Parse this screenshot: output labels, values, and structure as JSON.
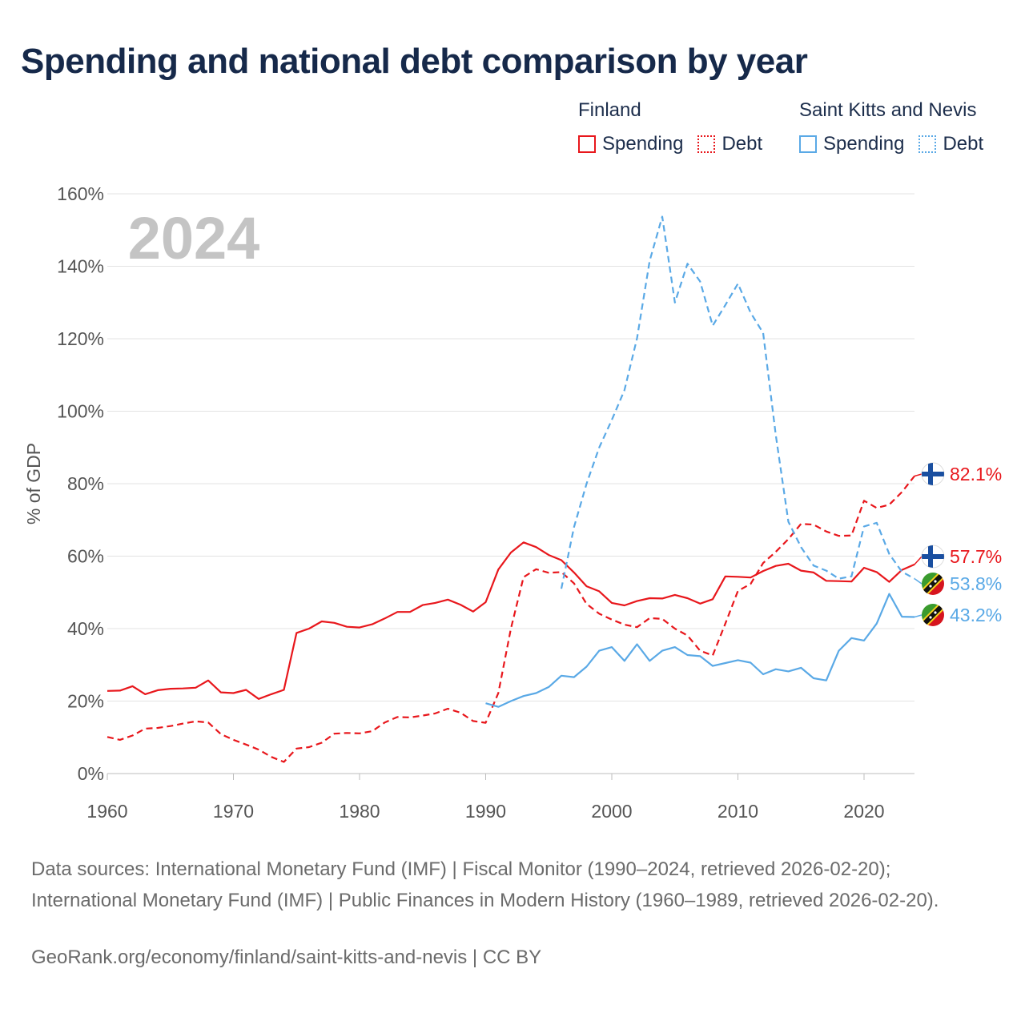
{
  "title": "Spending and national debt comparison by year",
  "legend": {
    "groups": [
      {
        "name": "Finland",
        "color": "#e8171c",
        "items": [
          {
            "label": "Spending",
            "style": "solid"
          },
          {
            "label": "Debt",
            "style": "dotted"
          }
        ]
      },
      {
        "name": "Saint Kitts and Nevis",
        "color": "#5aa9e6",
        "items": [
          {
            "label": "Spending",
            "style": "solid"
          },
          {
            "label": "Debt",
            "style": "dotted"
          }
        ]
      }
    ]
  },
  "chart_data": {
    "type": "line",
    "ylabel": "% of GDP",
    "xlabel": "",
    "year_label": "2024",
    "xlim": [
      1960,
      2024
    ],
    "ylim": [
      0,
      160
    ],
    "xticks": [
      1960,
      1970,
      1980,
      1990,
      2000,
      2010,
      2020
    ],
    "yticks": [
      0,
      20,
      40,
      60,
      80,
      100,
      120,
      140,
      160
    ],
    "ytick_labels": [
      "0%",
      "20%",
      "40%",
      "60%",
      "80%",
      "100%",
      "120%",
      "140%",
      "160%"
    ],
    "grid": true,
    "series": [
      {
        "name": "Finland Spending",
        "color": "#e8171c",
        "dash": "solid",
        "x": [
          1960,
          1961,
          1962,
          1963,
          1964,
          1965,
          1966,
          1967,
          1968,
          1969,
          1970,
          1971,
          1972,
          1973,
          1974,
          1975,
          1976,
          1977,
          1978,
          1979,
          1980,
          1981,
          1982,
          1983,
          1984,
          1985,
          1986,
          1987,
          1988,
          1989,
          1990,
          1991,
          1992,
          1993,
          1994,
          1995,
          1996,
          1997,
          1998,
          1999,
          2000,
          2001,
          2002,
          2003,
          2004,
          2005,
          2006,
          2007,
          2008,
          2009,
          2010,
          2011,
          2012,
          2013,
          2014,
          2015,
          2016,
          2017,
          2018,
          2019,
          2020,
          2021,
          2022,
          2023,
          2024
        ],
        "y": [
          22.8,
          22.9,
          24.1,
          21.9,
          23.0,
          23.4,
          23.5,
          23.7,
          25.7,
          22.4,
          22.2,
          23.1,
          20.6,
          21.9,
          23.1,
          38.8,
          40.0,
          42.0,
          41.6,
          40.5,
          40.3,
          41.2,
          42.8,
          44.6,
          44.6,
          46.5,
          47.1,
          48.0,
          46.6,
          44.7,
          47.3,
          56.3,
          61.0,
          63.8,
          62.5,
          60.3,
          58.9,
          55.5,
          51.7,
          50.3,
          47.1,
          46.4,
          47.6,
          48.4,
          48.3,
          49.3,
          48.4,
          46.9,
          48.1,
          54.4,
          54.3,
          54.1,
          55.9,
          57.3,
          57.9,
          56.0,
          55.5,
          53.2,
          53.1,
          53.0,
          56.8,
          55.6,
          52.9,
          56.2,
          57.7
        ],
        "end_label": "57.7%"
      },
      {
        "name": "Finland Debt",
        "color": "#e8171c",
        "dash": "dashed",
        "x": [
          1960,
          1961,
          1962,
          1963,
          1964,
          1965,
          1966,
          1967,
          1968,
          1969,
          1970,
          1971,
          1972,
          1973,
          1974,
          1975,
          1976,
          1977,
          1978,
          1979,
          1980,
          1981,
          1982,
          1983,
          1984,
          1985,
          1986,
          1987,
          1988,
          1989,
          1990,
          1991,
          1992,
          1993,
          1994,
          1995,
          1996,
          1997,
          1998,
          1999,
          2000,
          2001,
          2002,
          2003,
          2004,
          2005,
          2006,
          2007,
          2008,
          2009,
          2010,
          2011,
          2012,
          2013,
          2014,
          2015,
          2016,
          2017,
          2018,
          2019,
          2020,
          2021,
          2022,
          2023,
          2024
        ],
        "y": [
          10.1,
          9.3,
          10.5,
          12.4,
          12.6,
          13.1,
          13.8,
          14.4,
          14.1,
          10.9,
          9.3,
          8.0,
          6.6,
          4.6,
          3.2,
          6.9,
          7.3,
          8.5,
          11.0,
          11.2,
          11.1,
          11.7,
          14.1,
          15.6,
          15.5,
          16.0,
          16.6,
          17.9,
          16.8,
          14.5,
          14.0,
          22.2,
          40.0,
          54.2,
          56.4,
          55.4,
          55.6,
          52.5,
          46.8,
          44.1,
          42.5,
          41.1,
          40.4,
          42.9,
          42.7,
          40.0,
          38.1,
          33.9,
          32.6,
          41.4,
          50.4,
          52.3,
          58.1,
          61.2,
          64.7,
          68.9,
          68.7,
          66.8,
          65.6,
          65.7,
          75.3,
          73.3,
          74.2,
          77.7,
          82.1
        ],
        "end_label": "82.1%"
      },
      {
        "name": "Saint Kitts and Nevis Spending",
        "color": "#5aa9e6",
        "dash": "solid",
        "x": [
          1990,
          1991,
          1992,
          1993,
          1994,
          1995,
          1996,
          1997,
          1998,
          1999,
          2000,
          2001,
          2002,
          2003,
          2004,
          2005,
          2006,
          2007,
          2008,
          2009,
          2010,
          2011,
          2012,
          2013,
          2014,
          2015,
          2016,
          2017,
          2018,
          2019,
          2020,
          2021,
          2022,
          2023,
          2024
        ],
        "y": [
          19.4,
          18.4,
          20.0,
          21.4,
          22.2,
          23.9,
          27.0,
          26.6,
          29.5,
          33.9,
          34.9,
          31.1,
          35.7,
          31.1,
          33.9,
          34.9,
          32.7,
          32.4,
          29.7,
          30.5,
          31.3,
          30.6,
          27.4,
          28.8,
          28.2,
          29.2,
          26.3,
          25.7,
          33.9,
          37.4,
          36.7,
          41.4,
          49.6,
          43.3,
          43.2
        ],
        "end_label": "43.2%"
      },
      {
        "name": "Saint Kitts and Nevis Debt",
        "color": "#5aa9e6",
        "dash": "dashed",
        "x": [
          1996,
          1997,
          1998,
          1999,
          2000,
          2001,
          2002,
          2003,
          2004,
          2005,
          2006,
          2007,
          2008,
          2009,
          2010,
          2011,
          2012,
          2013,
          2014,
          2015,
          2016,
          2017,
          2018,
          2019,
          2020,
          2021,
          2022,
          2023,
          2024
        ],
        "y": [
          51.0,
          68.0,
          80.0,
          90.0,
          97.6,
          105.8,
          120.1,
          141.5,
          153.7,
          130.0,
          140.7,
          135.8,
          123.6,
          129.3,
          135.2,
          127.2,
          121.6,
          93.4,
          69.5,
          62.5,
          57.4,
          56.0,
          53.8,
          54.4,
          68.2,
          69.2,
          60.6,
          55.7,
          53.8
        ],
        "end_label": "53.8%"
      }
    ]
  },
  "sources": "Data sources: International Monetary Fund (IMF) | Fiscal Monitor (1990–2024, retrieved 2026-02-20); International Monetary Fund (IMF) | Public Finances in Modern History (1960–1989, retrieved 2026-02-20).",
  "credit": "GeoRank.org/economy/finland/saint-kitts-and-nevis | CC BY"
}
